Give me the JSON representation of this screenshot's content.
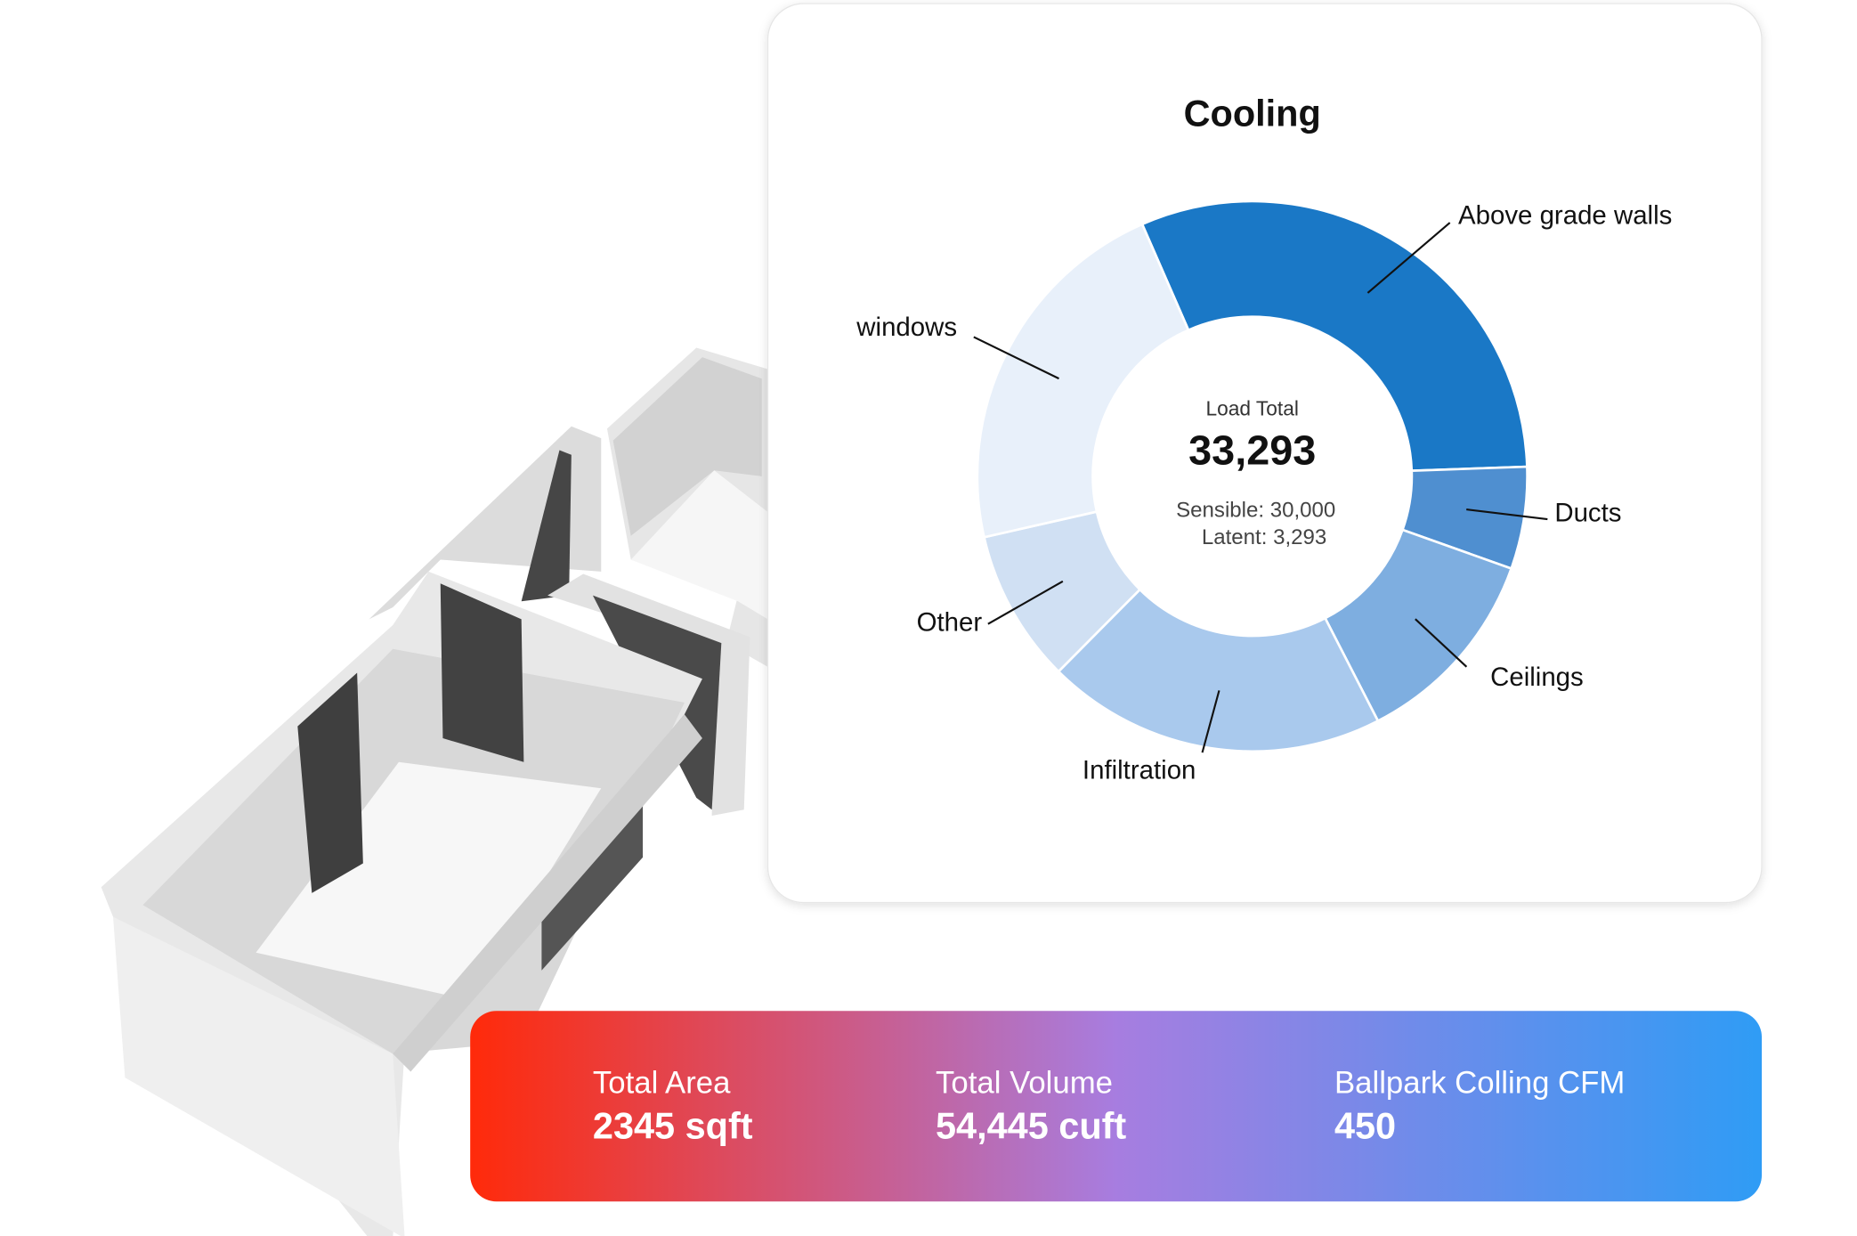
{
  "chart_data": {
    "type": "donut",
    "title": "Cooling",
    "center": {
      "label": "Load Total",
      "total": "33,293",
      "sensible": "Sensible: 30,000",
      "latent": "Latent: 3,293"
    },
    "categories": [
      "Above grade walls",
      "Ducts",
      "Ceilings",
      "Infiltration",
      "Other",
      "windows"
    ],
    "values": [
      31,
      6,
      12,
      20,
      9,
      22
    ],
    "colors": [
      "#1a78c6",
      "#4f8fd0",
      "#7eaee0",
      "#a9c9ed",
      "#d0e0f3",
      "#e8f0fa"
    ]
  },
  "stats": [
    {
      "label": "Total Area",
      "value": "2345 sqft"
    },
    {
      "label": "Total Volume",
      "value": "54,445 cuft"
    },
    {
      "label": "Ballpark Colling CFM",
      "value": "450"
    }
  ]
}
